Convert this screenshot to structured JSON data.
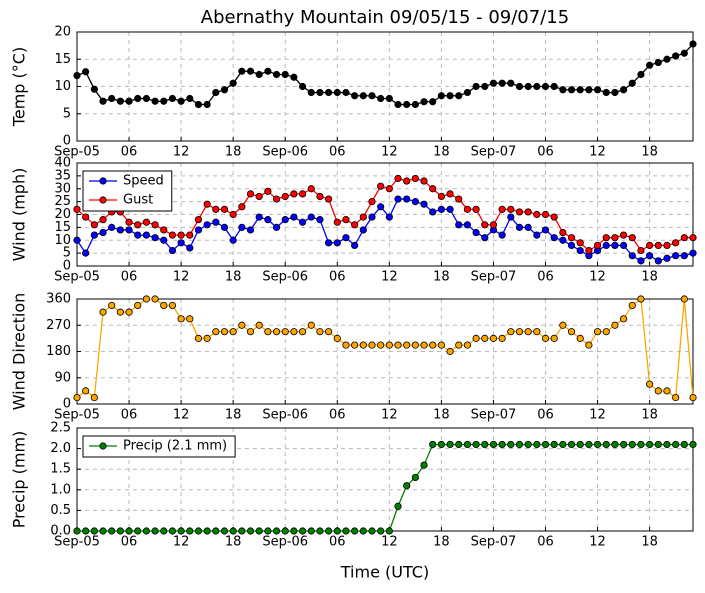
{
  "chart_data": [
    {
      "type": "line",
      "title": "Abernathy Mountain 09/05/15 - 09/07/15",
      "ylabel": "Temp (°C)",
      "x": [
        0,
        1,
        2,
        3,
        4,
        5,
        6,
        7,
        8,
        9,
        10,
        11,
        12,
        13,
        14,
        15,
        16,
        17,
        18,
        19,
        20,
        21,
        22,
        23,
        24,
        25,
        26,
        27,
        28,
        29,
        30,
        31,
        32,
        33,
        34,
        35,
        36,
        37,
        38,
        39,
        40,
        41,
        42,
        43,
        44,
        45,
        46,
        47,
        48,
        49,
        50,
        51,
        52,
        53,
        54,
        55,
        56,
        57,
        58,
        59,
        60,
        61,
        62,
        63,
        64,
        65,
        66,
        67,
        68,
        69,
        70,
        71
      ],
      "values": [
        12,
        12.7,
        9.5,
        7.3,
        7.8,
        7.3,
        7.3,
        7.8,
        7.8,
        7.3,
        7.3,
        7.8,
        7.3,
        7.8,
        6.7,
        6.7,
        8.9,
        9.4,
        10.6,
        12.8,
        12.8,
        12.2,
        12.8,
        12.2,
        12.2,
        11.7,
        10,
        8.9,
        8.9,
        8.9,
        8.9,
        8.9,
        8.3,
        8.3,
        8.3,
        7.8,
        7.8,
        6.7,
        6.7,
        6.7,
        7.2,
        7.2,
        8.3,
        8.3,
        8.3,
        8.9,
        10,
        10,
        10.6,
        10.6,
        10.6,
        10,
        10,
        10,
        10,
        10,
        9.4,
        9.4,
        9.4,
        9.4,
        9.4,
        8.9,
        8.9,
        9.4,
        10.6,
        12.2,
        13.9,
        14.4,
        15,
        15.6,
        16.1,
        17.8
      ],
      "color": "#000000",
      "xlim": [
        0,
        71
      ],
      "xticks": [
        {
          "value": 0,
          "label": "Sep-05"
        },
        {
          "value": 6,
          "label": "06"
        },
        {
          "value": 12,
          "label": "12"
        },
        {
          "value": 18,
          "label": "18"
        },
        {
          "value": 24,
          "label": "Sep-06"
        },
        {
          "value": 30,
          "label": "06"
        },
        {
          "value": 36,
          "label": "12"
        },
        {
          "value": 42,
          "label": "18"
        },
        {
          "value": 48,
          "label": "Sep-07"
        },
        {
          "value": 54,
          "label": "06"
        },
        {
          "value": 60,
          "label": "12"
        },
        {
          "value": 66,
          "label": "18"
        }
      ],
      "ylim": [
        0,
        20
      ],
      "yticks": [
        0,
        5,
        10,
        15,
        20
      ],
      "grid": true
    },
    {
      "type": "line",
      "ylabel": "Wind (mph)",
      "x": [
        0,
        1,
        2,
        3,
        4,
        5,
        6,
        7,
        8,
        9,
        10,
        11,
        12,
        13,
        14,
        15,
        16,
        17,
        18,
        19,
        20,
        21,
        22,
        23,
        24,
        25,
        26,
        27,
        28,
        29,
        30,
        31,
        32,
        33,
        34,
        35,
        36,
        37,
        38,
        39,
        40,
        41,
        42,
        43,
        44,
        45,
        46,
        47,
        48,
        49,
        50,
        51,
        52,
        53,
        54,
        55,
        56,
        57,
        58,
        59,
        60,
        61,
        62,
        63,
        64,
        65,
        66,
        67,
        68,
        69,
        70,
        71
      ],
      "series": [
        {
          "name": "Speed",
          "color": "#0000ff",
          "values": [
            10,
            5,
            12,
            13,
            15,
            14,
            14,
            12,
            12,
            11,
            10,
            6,
            9,
            7,
            14,
            16,
            17,
            15,
            10,
            15,
            14,
            19,
            18,
            15,
            18,
            19,
            17,
            19,
            18,
            9,
            9,
            11,
            8,
            14,
            19,
            23,
            19,
            26,
            26,
            25,
            24,
            21,
            22,
            22,
            16,
            16,
            13,
            11,
            14,
            12,
            19,
            15,
            15,
            12,
            14,
            11,
            10,
            8,
            6,
            4,
            6,
            8,
            8,
            8,
            4,
            2,
            4,
            2,
            3,
            4,
            4,
            5
          ]
        },
        {
          "name": "Gust",
          "color": "#ff0000",
          "values": [
            22,
            19,
            16,
            18,
            21,
            21,
            17,
            16,
            17,
            16,
            14,
            12,
            12,
            12,
            18,
            24,
            22,
            22,
            20,
            23,
            28,
            27,
            29,
            26,
            27,
            28,
            28,
            30,
            27,
            26,
            17,
            18,
            16,
            19,
            25,
            31,
            30,
            34,
            33,
            34,
            33,
            30,
            27,
            28,
            26,
            22,
            22,
            16,
            16,
            22,
            22,
            21,
            21,
            20,
            20,
            19,
            13,
            11,
            9,
            6,
            8,
            11,
            11,
            12,
            11,
            6,
            8,
            8,
            8,
            9,
            11,
            11
          ]
        }
      ],
      "legend": "upper left",
      "xlim": [
        0,
        71
      ],
      "xticks": [
        {
          "value": 0,
          "label": "Sep-05"
        },
        {
          "value": 6,
          "label": "06"
        },
        {
          "value": 12,
          "label": "12"
        },
        {
          "value": 18,
          "label": "18"
        },
        {
          "value": 24,
          "label": "Sep-06"
        },
        {
          "value": 30,
          "label": "06"
        },
        {
          "value": 36,
          "label": "12"
        },
        {
          "value": 42,
          "label": "18"
        },
        {
          "value": 48,
          "label": "Sep-07"
        },
        {
          "value": 54,
          "label": "06"
        },
        {
          "value": 60,
          "label": "12"
        },
        {
          "value": 66,
          "label": "18"
        }
      ],
      "ylim": [
        0,
        40
      ],
      "yticks": [
        0,
        5,
        10,
        15,
        20,
        25,
        30,
        35,
        40
      ],
      "grid": true
    },
    {
      "type": "line",
      "ylabel": "Wind Direction",
      "x": [
        0,
        1,
        2,
        3,
        4,
        5,
        6,
        7,
        8,
        9,
        10,
        11,
        12,
        13,
        14,
        15,
        16,
        17,
        18,
        19,
        20,
        21,
        22,
        23,
        24,
        25,
        26,
        27,
        28,
        29,
        30,
        31,
        32,
        33,
        34,
        35,
        36,
        37,
        38,
        39,
        40,
        41,
        42,
        43,
        44,
        45,
        46,
        47,
        48,
        49,
        50,
        51,
        52,
        53,
        54,
        55,
        56,
        57,
        58,
        59,
        60,
        61,
        62,
        63,
        64,
        65,
        66,
        67,
        68,
        69,
        70,
        71
      ],
      "values": [
        22,
        45,
        22,
        315,
        338,
        315,
        315,
        338,
        360,
        360,
        338,
        338,
        292,
        292,
        225,
        225,
        248,
        248,
        248,
        270,
        248,
        270,
        248,
        248,
        248,
        248,
        248,
        270,
        248,
        248,
        225,
        202,
        202,
        202,
        202,
        202,
        202,
        202,
        202,
        202,
        202,
        202,
        202,
        180,
        202,
        202,
        225,
        225,
        225,
        225,
        248,
        248,
        248,
        248,
        225,
        225,
        270,
        248,
        225,
        202,
        248,
        248,
        270,
        292,
        338,
        360,
        68,
        45,
        45,
        22,
        360,
        22
      ],
      "color": "#ffa500",
      "xlim": [
        0,
        71
      ],
      "xticks": [
        {
          "value": 0,
          "label": "Sep-05"
        },
        {
          "value": 6,
          "label": "06"
        },
        {
          "value": 12,
          "label": "12"
        },
        {
          "value": 18,
          "label": "18"
        },
        {
          "value": 24,
          "label": "Sep-06"
        },
        {
          "value": 30,
          "label": "06"
        },
        {
          "value": 36,
          "label": "12"
        },
        {
          "value": 42,
          "label": "18"
        },
        {
          "value": 48,
          "label": "Sep-07"
        },
        {
          "value": 54,
          "label": "06"
        },
        {
          "value": 60,
          "label": "12"
        },
        {
          "value": 66,
          "label": "18"
        }
      ],
      "ylim": [
        0,
        360
      ],
      "yticks": [
        0,
        90,
        180,
        270,
        360
      ],
      "grid": true
    },
    {
      "type": "line",
      "ylabel": "Precip (mm)",
      "xlabel": "Time (UTC)",
      "x": [
        0,
        1,
        2,
        3,
        4,
        5,
        6,
        7,
        8,
        9,
        10,
        11,
        12,
        13,
        14,
        15,
        16,
        17,
        18,
        19,
        20,
        21,
        22,
        23,
        24,
        25,
        26,
        27,
        28,
        29,
        30,
        31,
        32,
        33,
        34,
        35,
        36,
        37,
        38,
        39,
        40,
        41,
        42,
        43,
        44,
        45,
        46,
        47,
        48,
        49,
        50,
        51,
        52,
        53,
        54,
        55,
        56,
        57,
        58,
        59,
        60,
        61,
        62,
        63,
        64,
        65,
        66,
        67,
        68,
        69,
        70,
        71
      ],
      "series": [
        {
          "name": "Precip (2.1 mm)",
          "color": "#008000",
          "values": [
            0,
            0,
            0,
            0,
            0,
            0,
            0,
            0,
            0,
            0,
            0,
            0,
            0,
            0,
            0,
            0,
            0,
            0,
            0,
            0,
            0,
            0,
            0,
            0,
            0,
            0,
            0,
            0,
            0,
            0,
            0,
            0,
            0,
            0,
            0,
            0,
            0,
            0.6,
            1.1,
            1.3,
            1.6,
            2.1,
            2.1,
            2.1,
            2.1,
            2.1,
            2.1,
            2.1,
            2.1,
            2.1,
            2.1,
            2.1,
            2.1,
            2.1,
            2.1,
            2.1,
            2.1,
            2.1,
            2.1,
            2.1,
            2.1,
            2.1,
            2.1,
            2.1,
            2.1,
            2.1,
            2.1,
            2.1,
            2.1,
            2.1,
            2.1,
            2.1
          ]
        }
      ],
      "legend": "upper left",
      "xlim": [
        0,
        71
      ],
      "xticks": [
        {
          "value": 0,
          "label": "Sep-05"
        },
        {
          "value": 6,
          "label": "06"
        },
        {
          "value": 12,
          "label": "12"
        },
        {
          "value": 18,
          "label": "18"
        },
        {
          "value": 24,
          "label": "Sep-06"
        },
        {
          "value": 30,
          "label": "06"
        },
        {
          "value": 36,
          "label": "12"
        },
        {
          "value": 42,
          "label": "18"
        },
        {
          "value": 48,
          "label": "Sep-07"
        },
        {
          "value": 54,
          "label": "06"
        },
        {
          "value": 60,
          "label": "12"
        },
        {
          "value": 66,
          "label": "18"
        }
      ],
      "ylim": [
        0,
        2.5
      ],
      "yticks": [
        {
          "value": 0,
          "label": "0.0"
        },
        0.5,
        {
          "value": 1,
          "label": "1.0"
        },
        1.5,
        {
          "value": 2,
          "label": "2.0"
        },
        2.5
      ],
      "grid": true
    }
  ]
}
